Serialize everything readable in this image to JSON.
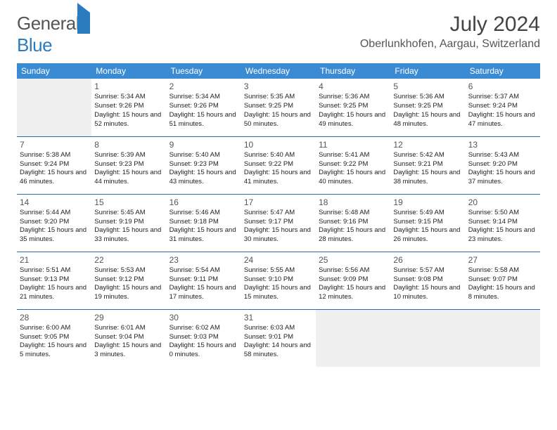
{
  "brand": {
    "part1": "General",
    "part2": "Blue"
  },
  "title": "July 2024",
  "location": "Oberlunkhofen, Aargau, Switzerland",
  "colors": {
    "header_bg": "#3b8bd4",
    "header_text": "#ffffff",
    "row_border": "#2a6aa8",
    "empty_bg": "#f0f0f0",
    "brand_blue": "#2b7bbf",
    "text": "#222222"
  },
  "weekdays": [
    "Sunday",
    "Monday",
    "Tuesday",
    "Wednesday",
    "Thursday",
    "Friday",
    "Saturday"
  ],
  "weeks": [
    [
      null,
      {
        "n": "1",
        "sr": "5:34 AM",
        "ss": "9:26 PM",
        "dl": "15 hours and 52 minutes."
      },
      {
        "n": "2",
        "sr": "5:34 AM",
        "ss": "9:26 PM",
        "dl": "15 hours and 51 minutes."
      },
      {
        "n": "3",
        "sr": "5:35 AM",
        "ss": "9:25 PM",
        "dl": "15 hours and 50 minutes."
      },
      {
        "n": "4",
        "sr": "5:36 AM",
        "ss": "9:25 PM",
        "dl": "15 hours and 49 minutes."
      },
      {
        "n": "5",
        "sr": "5:36 AM",
        "ss": "9:25 PM",
        "dl": "15 hours and 48 minutes."
      },
      {
        "n": "6",
        "sr": "5:37 AM",
        "ss": "9:24 PM",
        "dl": "15 hours and 47 minutes."
      }
    ],
    [
      {
        "n": "7",
        "sr": "5:38 AM",
        "ss": "9:24 PM",
        "dl": "15 hours and 46 minutes."
      },
      {
        "n": "8",
        "sr": "5:39 AM",
        "ss": "9:23 PM",
        "dl": "15 hours and 44 minutes."
      },
      {
        "n": "9",
        "sr": "5:40 AM",
        "ss": "9:23 PM",
        "dl": "15 hours and 43 minutes."
      },
      {
        "n": "10",
        "sr": "5:40 AM",
        "ss": "9:22 PM",
        "dl": "15 hours and 41 minutes."
      },
      {
        "n": "11",
        "sr": "5:41 AM",
        "ss": "9:22 PM",
        "dl": "15 hours and 40 minutes."
      },
      {
        "n": "12",
        "sr": "5:42 AM",
        "ss": "9:21 PM",
        "dl": "15 hours and 38 minutes."
      },
      {
        "n": "13",
        "sr": "5:43 AM",
        "ss": "9:20 PM",
        "dl": "15 hours and 37 minutes."
      }
    ],
    [
      {
        "n": "14",
        "sr": "5:44 AM",
        "ss": "9:20 PM",
        "dl": "15 hours and 35 minutes."
      },
      {
        "n": "15",
        "sr": "5:45 AM",
        "ss": "9:19 PM",
        "dl": "15 hours and 33 minutes."
      },
      {
        "n": "16",
        "sr": "5:46 AM",
        "ss": "9:18 PM",
        "dl": "15 hours and 31 minutes."
      },
      {
        "n": "17",
        "sr": "5:47 AM",
        "ss": "9:17 PM",
        "dl": "15 hours and 30 minutes."
      },
      {
        "n": "18",
        "sr": "5:48 AM",
        "ss": "9:16 PM",
        "dl": "15 hours and 28 minutes."
      },
      {
        "n": "19",
        "sr": "5:49 AM",
        "ss": "9:15 PM",
        "dl": "15 hours and 26 minutes."
      },
      {
        "n": "20",
        "sr": "5:50 AM",
        "ss": "9:14 PM",
        "dl": "15 hours and 23 minutes."
      }
    ],
    [
      {
        "n": "21",
        "sr": "5:51 AM",
        "ss": "9:13 PM",
        "dl": "15 hours and 21 minutes."
      },
      {
        "n": "22",
        "sr": "5:53 AM",
        "ss": "9:12 PM",
        "dl": "15 hours and 19 minutes."
      },
      {
        "n": "23",
        "sr": "5:54 AM",
        "ss": "9:11 PM",
        "dl": "15 hours and 17 minutes."
      },
      {
        "n": "24",
        "sr": "5:55 AM",
        "ss": "9:10 PM",
        "dl": "15 hours and 15 minutes."
      },
      {
        "n": "25",
        "sr": "5:56 AM",
        "ss": "9:09 PM",
        "dl": "15 hours and 12 minutes."
      },
      {
        "n": "26",
        "sr": "5:57 AM",
        "ss": "9:08 PM",
        "dl": "15 hours and 10 minutes."
      },
      {
        "n": "27",
        "sr": "5:58 AM",
        "ss": "9:07 PM",
        "dl": "15 hours and 8 minutes."
      }
    ],
    [
      {
        "n": "28",
        "sr": "6:00 AM",
        "ss": "9:05 PM",
        "dl": "15 hours and 5 minutes."
      },
      {
        "n": "29",
        "sr": "6:01 AM",
        "ss": "9:04 PM",
        "dl": "15 hours and 3 minutes."
      },
      {
        "n": "30",
        "sr": "6:02 AM",
        "ss": "9:03 PM",
        "dl": "15 hours and 0 minutes."
      },
      {
        "n": "31",
        "sr": "6:03 AM",
        "ss": "9:01 PM",
        "dl": "14 hours and 58 minutes."
      },
      null,
      null,
      null
    ]
  ],
  "labels": {
    "sunrise": "Sunrise:",
    "sunset": "Sunset:",
    "daylight": "Daylight:"
  }
}
